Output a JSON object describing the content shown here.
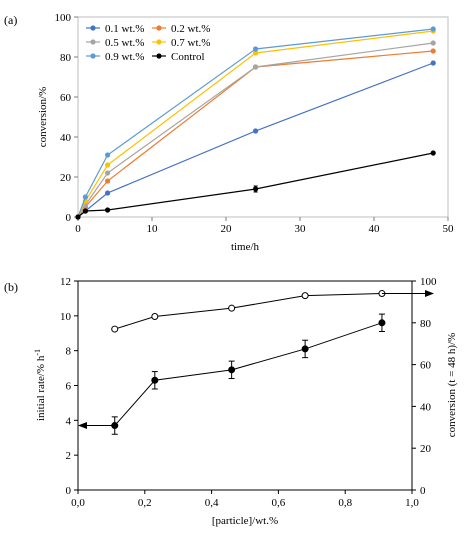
{
  "chart_data": [
    {
      "panel_label": "(a)",
      "type": "line",
      "xlabel": "time/h",
      "ylabel": "conversion/%",
      "xlim": [
        0,
        50
      ],
      "ylim": [
        0,
        100
      ],
      "x_ticks": [
        0,
        10,
        20,
        30,
        40,
        50
      ],
      "y_ticks": [
        0,
        20,
        40,
        60,
        80,
        100
      ],
      "grid": false,
      "legend_position": "top-left",
      "x": [
        0,
        1,
        4,
        24,
        48
      ],
      "series": [
        {
          "name": "0.1 wt.%",
          "color": "#4472C4",
          "values": [
            0,
            3,
            12,
            43,
            77
          ]
        },
        {
          "name": "0.2 wt.%",
          "color": "#ED7D31",
          "values": [
            0,
            5,
            18,
            75,
            83
          ]
        },
        {
          "name": "0.5 wt.%",
          "color": "#A5A5A5",
          "values": [
            0,
            6,
            22,
            75,
            87
          ]
        },
        {
          "name": "0.7 wt.%",
          "color": "#FFC000",
          "values": [
            0,
            8,
            26,
            82,
            93
          ]
        },
        {
          "name": "0.9 wt.%",
          "color": "#5B9BD5",
          "values": [
            0,
            10,
            31,
            84,
            94
          ]
        },
        {
          "name": "Control",
          "color": "#000000",
          "values": [
            0,
            3,
            3.5,
            14,
            32
          ],
          "error": [
            0,
            0,
            0,
            1.5,
            0
          ]
        }
      ]
    },
    {
      "panel_label": "(b)",
      "type": "line",
      "xlabel": "[particle]/wt.%",
      "ylabel": "initial rate/% h",
      "ylabel_superscript": "-1",
      "y2label": "conversion (t = 48 h)/%",
      "xlim": [
        0,
        1
      ],
      "ylim": [
        0,
        12
      ],
      "y2lim": [
        0,
        100
      ],
      "x_ticks": [
        "0,0",
        "0,2",
        "0,4",
        "0,6",
        "0,8",
        "1,0"
      ],
      "y_ticks": [
        0,
        2,
        4,
        6,
        8,
        10,
        12
      ],
      "y2_ticks": [
        0,
        20,
        40,
        60,
        80,
        100
      ],
      "grid": false,
      "x": [
        0.11,
        0.23,
        0.46,
        0.68,
        0.91
      ],
      "series": [
        {
          "axis": "left",
          "marker": "filled-circle",
          "color": "#000000",
          "values": [
            3.7,
            6.3,
            6.9,
            8.1,
            9.6
          ],
          "error": [
            0.5,
            0.5,
            0.5,
            0.5,
            0.5
          ]
        },
        {
          "axis": "right",
          "marker": "open-circle",
          "color": "#000000",
          "values": [
            77,
            83,
            87,
            93,
            94
          ]
        }
      ]
    }
  ]
}
